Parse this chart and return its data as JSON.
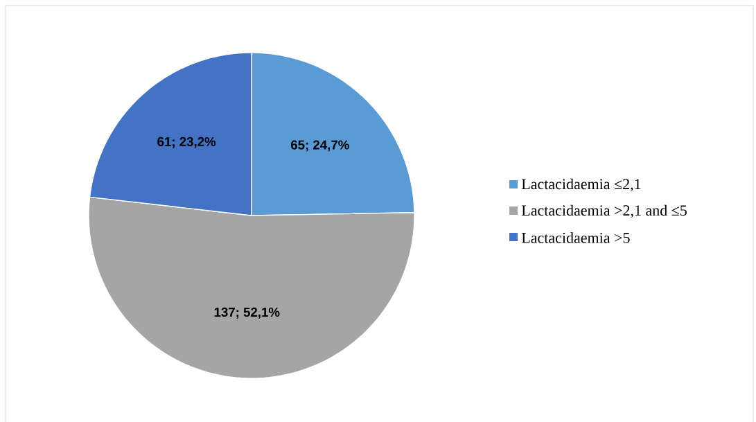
{
  "chart_data": {
    "type": "pie",
    "categories": [
      "Lactacidaemia ≤2,1",
      "Lactacidaemia >2,1 and ≤5",
      "Lactacidaemia >5"
    ],
    "values": [
      65,
      137,
      61
    ],
    "colors": [
      "#5b9bd5",
      "#a5a5a5",
      "#4472c4"
    ],
    "value_labels": [
      "65; 24,7%",
      "137; 52,1%",
      "61; 23,2%"
    ],
    "legend": "right"
  }
}
